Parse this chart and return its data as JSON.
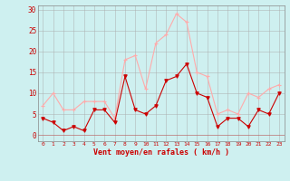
{
  "x": [
    0,
    1,
    2,
    3,
    4,
    5,
    6,
    7,
    8,
    9,
    10,
    11,
    12,
    13,
    14,
    15,
    16,
    17,
    18,
    19,
    20,
    21,
    22,
    23
  ],
  "vent_moyen": [
    4,
    3,
    1,
    2,
    1,
    6,
    6,
    3,
    14,
    6,
    5,
    7,
    13,
    14,
    17,
    10,
    9,
    2,
    4,
    4,
    2,
    6,
    5,
    10
  ],
  "vent_rafales": [
    7,
    10,
    6,
    6,
    8,
    8,
    8,
    4,
    18,
    19,
    11,
    22,
    24,
    29,
    27,
    15,
    14,
    5,
    6,
    5,
    10,
    9,
    11,
    12
  ],
  "color_moyen": "#cc0000",
  "color_rafales": "#ffaaaa",
  "bg_color": "#cef0f0",
  "grid_color": "#aaaaaa",
  "xlabel": "Vent moyen/en rafales ( km/h )",
  "xlabel_color": "#cc0000",
  "ylabel_ticks": [
    0,
    5,
    10,
    15,
    20,
    25,
    30
  ],
  "ylim": [
    -1.5,
    31
  ],
  "xlim": [
    -0.5,
    23.5
  ]
}
